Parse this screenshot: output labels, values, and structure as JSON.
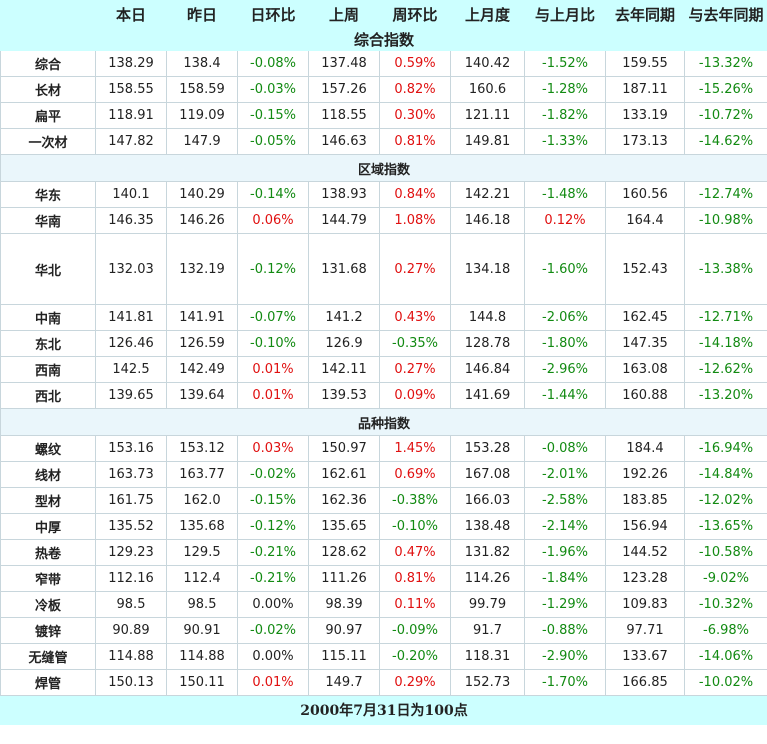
{
  "columns": [
    "",
    "本日",
    "昨日",
    "日环比",
    "上周",
    "周环比",
    "上月度",
    "与上月比",
    "去年同期",
    "与去年同期"
  ],
  "change_cols": [
    3,
    5,
    7,
    9
  ],
  "sections": [
    {
      "title": "综合指数",
      "rows": [
        [
          "综合",
          "138.29",
          "138.4",
          "-0.08%",
          "137.48",
          "0.59%",
          "140.42",
          "-1.52%",
          "159.55",
          "-13.32%"
        ],
        [
          "长材",
          "158.55",
          "158.59",
          "-0.03%",
          "157.26",
          "0.82%",
          "160.6",
          "-1.28%",
          "187.11",
          "-15.26%"
        ],
        [
          "扁平",
          "118.91",
          "119.09",
          "-0.15%",
          "118.55",
          "0.30%",
          "121.11",
          "-1.82%",
          "133.19",
          "-10.72%"
        ],
        [
          "一次材",
          "147.82",
          "147.9",
          "-0.05%",
          "146.63",
          "0.81%",
          "149.81",
          "-1.33%",
          "173.13",
          "-14.62%"
        ]
      ]
    },
    {
      "title": "区域指数",
      "rows": [
        [
          "华东",
          "140.1",
          "140.29",
          "-0.14%",
          "138.93",
          "0.84%",
          "142.21",
          "-1.48%",
          "160.56",
          "-12.74%"
        ],
        [
          "华南",
          "146.35",
          "146.26",
          "0.06%",
          "144.79",
          "1.08%",
          "146.18",
          "0.12%",
          "164.4",
          "-10.98%"
        ],
        [
          "华北",
          "132.03",
          "132.19",
          "-0.12%",
          "131.68",
          "0.27%",
          "134.18",
          "-1.60%",
          "152.43",
          "-13.38%"
        ],
        [
          "中南",
          "141.81",
          "141.91",
          "-0.07%",
          "141.2",
          "0.43%",
          "144.8",
          "-2.06%",
          "162.45",
          "-12.71%"
        ],
        [
          "东北",
          "126.46",
          "126.59",
          "-0.10%",
          "126.9",
          "-0.35%",
          "128.78",
          "-1.80%",
          "147.35",
          "-14.18%"
        ],
        [
          "西南",
          "142.5",
          "142.49",
          "0.01%",
          "142.11",
          "0.27%",
          "146.84",
          "-2.96%",
          "163.08",
          "-12.62%"
        ],
        [
          "西北",
          "139.65",
          "139.64",
          "0.01%",
          "139.53",
          "0.09%",
          "141.69",
          "-1.44%",
          "160.88",
          "-13.20%"
        ]
      ]
    },
    {
      "title": "品种指数",
      "rows": [
        [
          "螺纹",
          "153.16",
          "153.12",
          "0.03%",
          "150.97",
          "1.45%",
          "153.28",
          "-0.08%",
          "184.4",
          "-16.94%"
        ],
        [
          "线材",
          "163.73",
          "163.77",
          "-0.02%",
          "162.61",
          "0.69%",
          "167.08",
          "-2.01%",
          "192.26",
          "-14.84%"
        ],
        [
          "型材",
          "161.75",
          "162.0",
          "-0.15%",
          "162.36",
          "-0.38%",
          "166.03",
          "-2.58%",
          "183.85",
          "-12.02%"
        ],
        [
          "中厚",
          "135.52",
          "135.68",
          "-0.12%",
          "135.65",
          "-0.10%",
          "138.48",
          "-2.14%",
          "156.94",
          "-13.65%"
        ],
        [
          "热卷",
          "129.23",
          "129.5",
          "-0.21%",
          "128.62",
          "0.47%",
          "131.82",
          "-1.96%",
          "144.52",
          "-10.58%"
        ],
        [
          "窄带",
          "112.16",
          "112.4",
          "-0.21%",
          "111.26",
          "0.81%",
          "114.26",
          "-1.84%",
          "123.28",
          "-9.02%"
        ],
        [
          "冷板",
          "98.5",
          "98.5",
          "0.00%",
          "98.39",
          "0.11%",
          "99.79",
          "-1.29%",
          "109.83",
          "-10.32%"
        ],
        [
          "镀锌",
          "90.89",
          "90.91",
          "-0.02%",
          "90.97",
          "-0.09%",
          "91.7",
          "-0.88%",
          "97.71",
          "-6.98%"
        ],
        [
          "无缝管",
          "114.88",
          "114.88",
          "0.00%",
          "115.11",
          "-0.20%",
          "118.31",
          "-2.90%",
          "133.67",
          "-14.06%"
        ],
        [
          "焊管",
          "150.13",
          "150.11",
          "0.01%",
          "149.7",
          "0.29%",
          "152.73",
          "-1.70%",
          "166.85",
          "-10.02%"
        ]
      ]
    }
  ],
  "footer": "2000年7月31日为100点",
  "colors": {
    "positive": "#e01010",
    "negative": "#128a12",
    "header_bg": "#ccffff",
    "section_bg": "#eaf6fb"
  }
}
